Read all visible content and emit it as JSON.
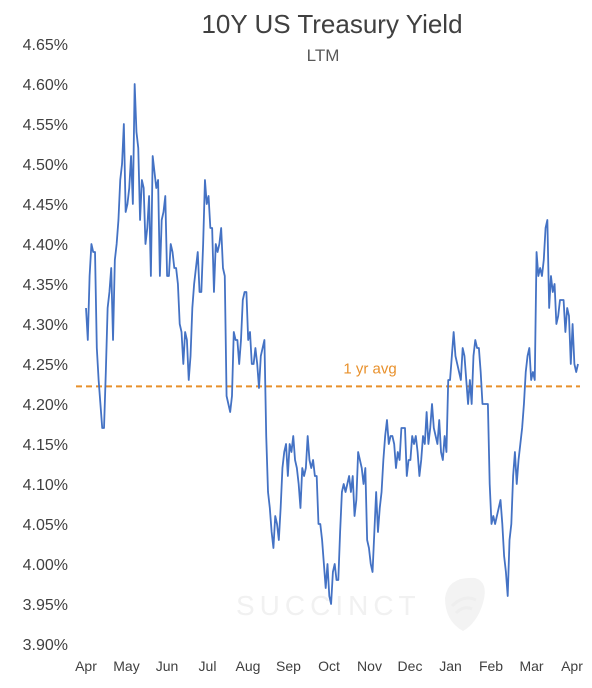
{
  "colors": {
    "line": "#4472c4",
    "avg": "#e8902b",
    "text": "#404040",
    "watermark": "#f1f1f1"
  },
  "watermark": {
    "text": "SUCCINCT",
    "icon": "succinct-logo-icon"
  },
  "chart_data": {
    "type": "line",
    "title": "10Y US Treasury Yield",
    "subtitle": "LTM",
    "xlabel": "",
    "ylabel": "",
    "ylim": [
      3.9,
      4.65
    ],
    "y_ticks": [
      3.9,
      3.95,
      4.0,
      4.05,
      4.1,
      4.15,
      4.2,
      4.25,
      4.3,
      4.35,
      4.4,
      4.45,
      4.5,
      4.55,
      4.6,
      4.65
    ],
    "y_tick_labels": [
      "3.90%",
      "3.95%",
      "4.00%",
      "4.05%",
      "4.10%",
      "4.15%",
      "4.20%",
      "4.25%",
      "4.30%",
      "4.35%",
      "4.40%",
      "4.45%",
      "4.50%",
      "4.55%",
      "4.60%",
      "4.65%"
    ],
    "x_tick_labels": [
      "Apr",
      "May",
      "Jun",
      "Jul",
      "Aug",
      "Sep",
      "Oct",
      "Nov",
      "Dec",
      "Jan",
      "Feb",
      "Mar",
      "Apr"
    ],
    "grid": false,
    "reference_line": {
      "label": "1 yr avg",
      "value": 4.222
    },
    "series": [
      {
        "values": [
          4.32,
          4.28,
          4.36,
          4.4,
          4.39,
          4.39,
          4.27,
          4.23,
          4.2,
          4.17,
          4.17,
          4.24,
          4.32,
          4.34,
          4.37,
          4.28,
          4.38,
          4.4,
          4.43,
          4.48,
          4.5,
          4.55,
          4.44,
          4.45,
          4.47,
          4.51,
          4.45,
          4.6,
          4.54,
          4.52,
          4.43,
          4.48,
          4.47,
          4.4,
          4.42,
          4.46,
          4.36,
          4.51,
          4.49,
          4.47,
          4.48,
          4.36,
          4.43,
          4.44,
          4.46,
          4.36,
          4.36,
          4.4,
          4.39,
          4.37,
          4.37,
          4.35,
          4.3,
          4.29,
          4.25,
          4.29,
          4.28,
          4.23,
          4.26,
          4.32,
          4.35,
          4.37,
          4.39,
          4.34,
          4.34,
          4.4,
          4.48,
          4.45,
          4.46,
          4.42,
          4.42,
          4.34,
          4.4,
          4.39,
          4.4,
          4.42,
          4.37,
          4.36,
          4.21,
          4.2,
          4.19,
          4.21,
          4.29,
          4.28,
          4.28,
          4.25,
          4.28,
          4.33,
          4.34,
          4.34,
          4.28,
          4.29,
          4.25,
          4.25,
          4.27,
          4.25,
          4.22,
          4.26,
          4.27,
          4.28,
          4.16,
          4.09,
          4.07,
          4.04,
          4.02,
          4.06,
          4.05,
          4.03,
          4.07,
          4.12,
          4.14,
          4.15,
          4.11,
          4.15,
          4.14,
          4.16,
          4.13,
          4.12,
          4.1,
          4.07,
          4.12,
          4.11,
          4.12,
          4.16,
          4.13,
          4.12,
          4.13,
          4.11,
          4.11,
          4.05,
          4.05,
          4.03,
          4.0,
          3.97,
          4.0,
          3.96,
          3.95,
          3.99,
          4.0,
          3.98,
          3.98,
          4.04,
          4.09,
          4.1,
          4.09,
          4.1,
          4.11,
          4.09,
          4.11,
          4.06,
          4.08,
          4.14,
          4.13,
          4.12,
          4.1,
          4.12,
          4.03,
          4.02,
          4.0,
          3.99,
          4.04,
          4.09,
          4.04,
          4.07,
          4.09,
          4.13,
          4.16,
          4.18,
          4.15,
          4.16,
          4.16,
          4.15,
          4.12,
          4.14,
          4.13,
          4.17,
          4.17,
          4.17,
          4.11,
          4.13,
          4.13,
          4.16,
          4.15,
          4.16,
          4.14,
          4.11,
          4.13,
          4.16,
          4.15,
          4.19,
          4.15,
          4.17,
          4.2,
          4.17,
          4.16,
          4.15,
          4.18,
          4.14,
          4.13,
          4.16,
          4.14,
          4.23,
          4.23,
          4.26,
          4.29,
          4.26,
          4.25,
          4.24,
          4.23,
          4.27,
          4.26,
          4.23,
          4.2,
          4.23,
          4.2,
          4.26,
          4.28,
          4.27,
          4.27,
          4.24,
          4.2,
          4.2,
          4.2,
          4.2,
          4.1,
          4.05,
          4.06,
          4.05,
          4.06,
          4.07,
          4.08,
          4.05,
          4.01,
          3.99,
          3.96,
          4.03,
          4.05,
          4.11,
          4.14,
          4.1,
          4.13,
          4.15,
          4.17,
          4.2,
          4.24,
          4.26,
          4.27,
          4.23,
          4.24,
          4.23,
          4.39,
          4.36,
          4.37,
          4.36,
          4.38,
          4.42,
          4.43,
          4.32,
          4.36,
          4.34,
          4.35,
          4.3,
          4.31,
          4.33,
          4.33,
          4.33,
          4.29,
          4.32,
          4.31,
          4.25,
          4.3,
          4.25,
          4.24,
          4.25
        ]
      }
    ]
  }
}
